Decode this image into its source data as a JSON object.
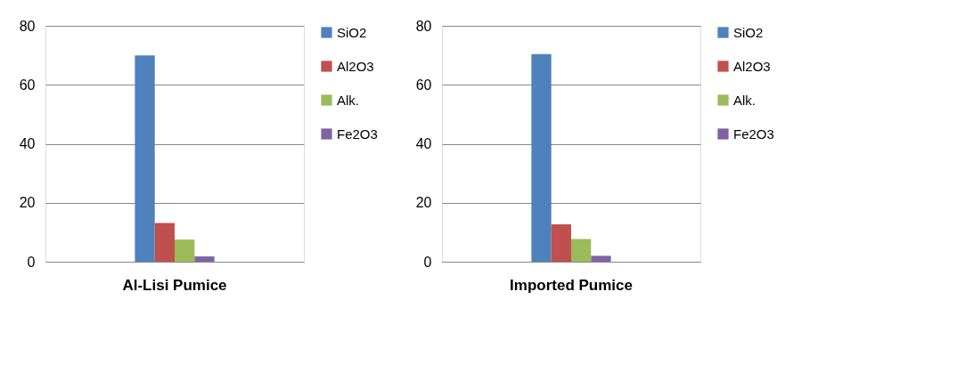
{
  "chart_data": [
    {
      "type": "bar",
      "categories": [
        "Al-Lisi Pumice"
      ],
      "ylim": [
        0,
        80
      ],
      "yticks": [
        0,
        20,
        40,
        60,
        80
      ],
      "grid": "y",
      "legend": "right",
      "series": [
        {
          "name": "SiO2",
          "color": "#4f81bd",
          "values": [
            70.0
          ]
        },
        {
          "name": "Al2O3",
          "color": "#c0504d",
          "values": [
            13.1
          ]
        },
        {
          "name": "Alk.",
          "color": "#9bbb59",
          "values": [
            7.5
          ]
        },
        {
          "name": "Fe2O3",
          "color": "#8064a2",
          "values": [
            1.8
          ]
        }
      ]
    },
    {
      "type": "bar",
      "categories": [
        "Imported Pumice"
      ],
      "ylim": [
        0,
        80
      ],
      "yticks": [
        0,
        20,
        40,
        60,
        80
      ],
      "grid": "y",
      "legend": "right",
      "series": [
        {
          "name": "SiO2",
          "color": "#4f81bd",
          "values": [
            70.4
          ]
        },
        {
          "name": "Al2O3",
          "color": "#c0504d",
          "values": [
            12.7
          ]
        },
        {
          "name": "Alk.",
          "color": "#9bbb59",
          "values": [
            7.7
          ]
        },
        {
          "name": "Fe2O3",
          "color": "#8064a2",
          "values": [
            2.0
          ]
        }
      ]
    }
  ]
}
